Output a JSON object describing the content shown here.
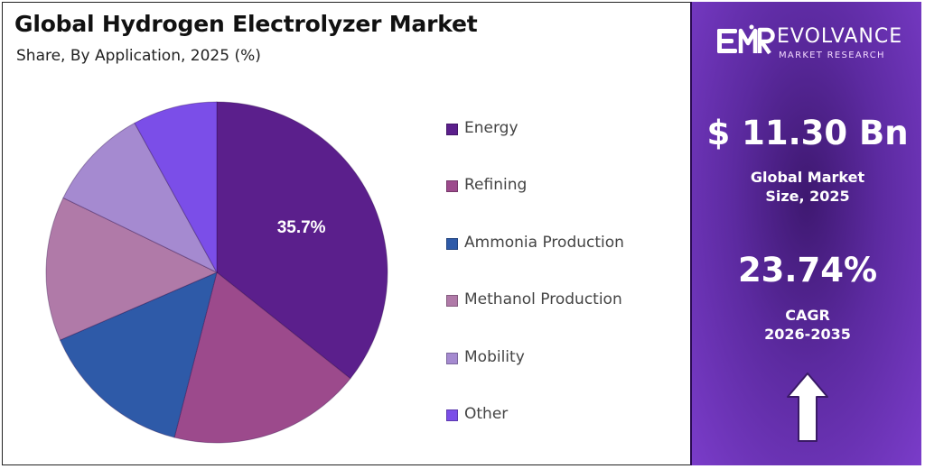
{
  "chart_data": {
    "type": "pie",
    "title": "Global Hydrogen Electrolyzer Market",
    "subtitle": "Share, By Application, 2025 (%)",
    "categories": [
      "Energy",
      "Refining",
      "Ammonia Production",
      "Methanol Production",
      "Mobility",
      "Other"
    ],
    "values": [
      35.7,
      18.3,
      14.5,
      13.7,
      9.8,
      8.0
    ],
    "colors": [
      "#5b1f8c",
      "#9c4a8c",
      "#2e5aa8",
      "#b07aa8",
      "#a58ad0",
      "#7b4ee8"
    ],
    "data_labels": [
      {
        "category": "Energy",
        "text": "35.7%"
      }
    ],
    "legend_position": "right"
  },
  "brand": {
    "mark": "EMR",
    "name": "EVOLVANCE",
    "tagline": "MARKET RESEARCH"
  },
  "stats": {
    "market_size_value": "$ 11.30 Bn",
    "market_size_label_1": "Global Market",
    "market_size_label_2": "Size, 2025",
    "cagr_value": "23.74%",
    "cagr_label_1": "CAGR",
    "cagr_label_2": "2026-2035"
  },
  "icons": {
    "trend": "up-arrow-icon"
  }
}
